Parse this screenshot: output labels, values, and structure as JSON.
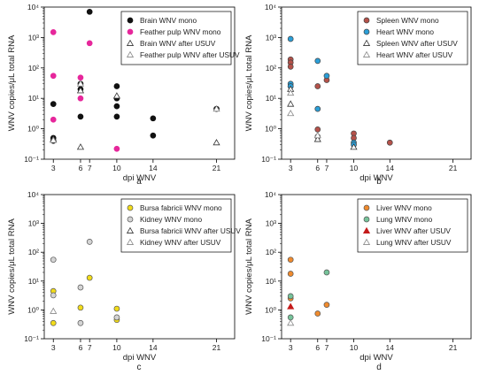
{
  "chart_data": [
    {
      "type": "scatter",
      "panel_label": "a",
      "xlabel": "dpi WNV",
      "ylabel": "WNV copies/μL total RNA",
      "xticks": [
        3,
        6,
        7,
        10,
        14,
        21
      ],
      "xlim": [
        2,
        23
      ],
      "yscale": "log",
      "ylim": [
        0.1,
        10000
      ],
      "yticks": [
        "10⁻¹",
        "10⁰",
        "10¹",
        "10²",
        "10³",
        "10⁴"
      ],
      "legend_position": "top-right",
      "series": [
        {
          "name": "Brain WNV mono",
          "marker": "circle",
          "fill": "#111111",
          "stroke": "#111111",
          "points": [
            [
              3,
              6.5
            ],
            [
              3,
              0.5
            ],
            [
              3,
              0.4
            ],
            [
              6,
              30
            ],
            [
              6,
              20
            ],
            [
              6,
              2.5
            ],
            [
              7,
              7000
            ],
            [
              10,
              25
            ],
            [
              10,
              10
            ],
            [
              10,
              5.5
            ],
            [
              10,
              2.5
            ],
            [
              14,
              2.2
            ],
            [
              14,
              0.6
            ],
            [
              21,
              4.5
            ]
          ]
        },
        {
          "name": "Feather pulp WNV mono",
          "marker": "circle",
          "fill": "#e6279b",
          "stroke": "#e6279b",
          "points": [
            [
              3,
              1500
            ],
            [
              3,
              55
            ],
            [
              3,
              2.0
            ],
            [
              6,
              48
            ],
            [
              6,
              10
            ],
            [
              7,
              650
            ],
            [
              10,
              0.22
            ]
          ]
        },
        {
          "name": "Brain WNV after USUV",
          "marker": "triangle",
          "fill": "#ffffff",
          "stroke": "#333333",
          "points": [
            [
              3,
              0.45
            ],
            [
              6,
              18
            ],
            [
              6,
              0.25
            ],
            [
              10,
              12
            ],
            [
              21,
              0.35
            ]
          ]
        },
        {
          "name": "Feather pulp WNV after USUV",
          "marker": "triangle",
          "fill": "#ffffff",
          "stroke": "#888888",
          "points": [
            [
              3,
              0.42
            ],
            [
              6,
              30
            ],
            [
              21,
              4.5
            ]
          ]
        }
      ]
    },
    {
      "type": "scatter",
      "panel_label": "b",
      "xlabel": "dpi WNV",
      "ylabel": "WNV copies/μL total RNA",
      "xticks": [
        3,
        6,
        7,
        10,
        14,
        21
      ],
      "xlim": [
        2,
        23
      ],
      "yscale": "log",
      "ylim": [
        0.1,
        10000
      ],
      "yticks": [
        "10⁻¹",
        "10⁰",
        "10¹",
        "10²",
        "10³",
        "10⁴"
      ],
      "legend_position": "top-right",
      "series": [
        {
          "name": "Spleen WNV mono",
          "marker": "circle",
          "fill": "#b5524a",
          "stroke": "#444444",
          "points": [
            [
              3,
              190
            ],
            [
              3,
              150
            ],
            [
              3,
              110
            ],
            [
              3,
              25
            ],
            [
              6,
              25
            ],
            [
              6,
              0.95
            ],
            [
              6,
              0.55
            ],
            [
              7,
              40
            ],
            [
              10,
              0.7
            ],
            [
              10,
              0.5
            ],
            [
              14,
              0.35
            ]
          ]
        },
        {
          "name": "Heart WNV mono",
          "marker": "circle",
          "fill": "#2b9fd8",
          "stroke": "#444444",
          "points": [
            [
              3,
              900
            ],
            [
              3,
              30
            ],
            [
              3,
              25
            ],
            [
              6,
              170
            ],
            [
              6,
              4.5
            ],
            [
              7,
              55
            ],
            [
              10,
              0.35
            ],
            [
              10,
              0.3
            ]
          ]
        },
        {
          "name": "Spleen WNV after USUV",
          "marker": "triangle",
          "fill": "#ffffff",
          "stroke": "#333333",
          "points": [
            [
              3,
              20
            ],
            [
              3,
              6.5
            ],
            [
              6,
              0.45
            ],
            [
              10,
              0.25
            ]
          ]
        },
        {
          "name": "Heart WNV after USUV",
          "marker": "triangle",
          "fill": "#ffffff",
          "stroke": "#888888",
          "points": [
            [
              3,
              15
            ],
            [
              3,
              3.2
            ],
            [
              6,
              0.6
            ]
          ]
        }
      ]
    },
    {
      "type": "scatter",
      "panel_label": "c",
      "xlabel": "dpi WNV",
      "ylabel": "WNV copies/μL total RNA",
      "xticks": [
        3,
        6,
        7,
        10,
        14,
        21
      ],
      "xlim": [
        2,
        23
      ],
      "yscale": "log",
      "ylim": [
        0.1,
        10000
      ],
      "yticks": [
        "10⁻¹",
        "10⁰",
        "10¹",
        "10²",
        "10³",
        "10⁴"
      ],
      "legend_position": "top-right",
      "series": [
        {
          "name": "Bursa fabricii WNV mono",
          "marker": "circle",
          "fill": "#f2dc1a",
          "stroke": "#555555",
          "points": [
            [
              3,
              4.5
            ],
            [
              3,
              0.35
            ],
            [
              6,
              1.2
            ],
            [
              7,
              13
            ],
            [
              10,
              1.1
            ],
            [
              10,
              0.45
            ]
          ]
        },
        {
          "name": "Kidney WNV mono",
          "marker": "circle",
          "fill": "#d4d4d4",
          "stroke": "#555555",
          "points": [
            [
              3,
              55
            ],
            [
              3,
              3.2
            ],
            [
              6,
              6
            ],
            [
              6,
              0.35
            ],
            [
              7,
              230
            ],
            [
              10,
              0.55
            ]
          ]
        },
        {
          "name": "Bursa fabricii WNV after USUV",
          "marker": "triangle",
          "fill": "#ffffff",
          "stroke": "#333333",
          "points": []
        },
        {
          "name": "Kidney WNV after USUV",
          "marker": "triangle",
          "fill": "#ffffff",
          "stroke": "#888888",
          "points": [
            [
              3,
              0.9
            ]
          ]
        }
      ]
    },
    {
      "type": "scatter",
      "panel_label": "d",
      "xlabel": "dpi WNV",
      "ylabel": "WNV copies/μL total RNA",
      "xticks": [
        3,
        6,
        7,
        10,
        14,
        21
      ],
      "xlim": [
        2,
        23
      ],
      "yscale": "log",
      "ylim": [
        0.1,
        10000
      ],
      "yticks": [
        "10⁻¹",
        "10⁰",
        "10¹",
        "10²",
        "10³",
        "10⁴"
      ],
      "legend_position": "top-right",
      "series": [
        {
          "name": "Liver WNV mono",
          "marker": "circle",
          "fill": "#f08b2e",
          "stroke": "#555555",
          "points": [
            [
              3,
              55
            ],
            [
              3,
              18
            ],
            [
              3,
              2.5
            ],
            [
              6,
              0.75
            ],
            [
              7,
              1.5
            ]
          ]
        },
        {
          "name": "Lung WNV mono",
          "marker": "circle",
          "fill": "#76c39a",
          "stroke": "#555555",
          "points": [
            [
              3,
              3.0
            ],
            [
              3,
              0.55
            ],
            [
              7,
              20
            ]
          ]
        },
        {
          "name": "Liver WNV after USUV",
          "marker": "triangle",
          "fill": "#c41a1a",
          "stroke": "#c41a1a",
          "points": [
            [
              3,
              1.3
            ]
          ]
        },
        {
          "name": "Lung WNV after USUV",
          "marker": "triangle",
          "fill": "#ffffff",
          "stroke": "#888888",
          "points": [
            [
              3,
              0.35
            ]
          ]
        }
      ]
    }
  ]
}
